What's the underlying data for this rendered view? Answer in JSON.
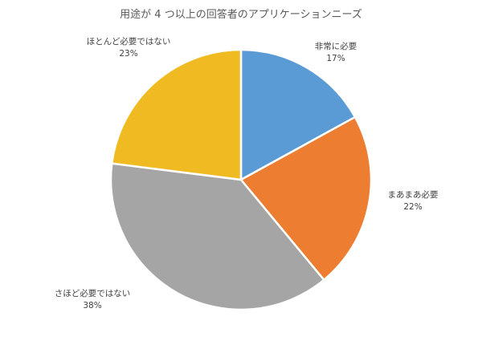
{
  "chart_data": {
    "type": "pie",
    "title": "用途が 4 つ以上の回答者のアプリケーションニーズ",
    "categories": [
      "非常に必要",
      "まあまあ必要",
      "さほど必要ではない",
      "ほとんど必要ではない"
    ],
    "values": [
      17,
      22,
      38,
      23
    ],
    "value_labels": [
      "17%",
      "22%",
      "38%",
      "23%"
    ],
    "colors": [
      "#5B9BD5",
      "#ED7D31",
      "#A5A5A5",
      "#F0BB22"
    ],
    "start": "12 o'clock",
    "direction": "clockwise",
    "legend": "none",
    "data_labels": "outside with category name and percent"
  }
}
